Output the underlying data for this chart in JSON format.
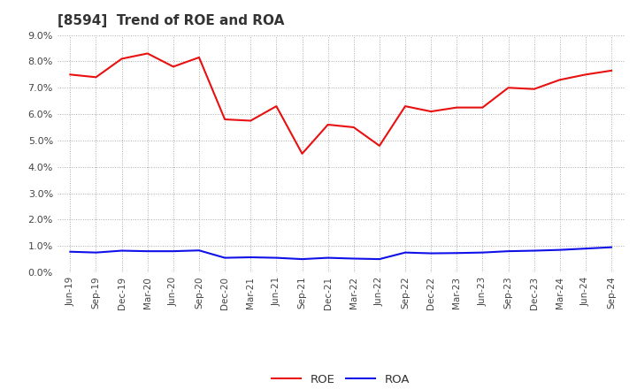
{
  "title": "[8594]  Trend of ROE and ROA",
  "x_labels": [
    "Jun-19",
    "Sep-19",
    "Dec-19",
    "Mar-20",
    "Jun-20",
    "Sep-20",
    "Dec-20",
    "Mar-21",
    "Jun-21",
    "Sep-21",
    "Dec-21",
    "Mar-22",
    "Jun-22",
    "Sep-22",
    "Dec-22",
    "Mar-23",
    "Jun-23",
    "Sep-23",
    "Dec-23",
    "Mar-24",
    "Jun-24",
    "Sep-24"
  ],
  "roe": [
    7.5,
    7.4,
    8.1,
    8.3,
    7.8,
    8.15,
    5.8,
    5.75,
    6.3,
    4.5,
    5.6,
    5.5,
    4.8,
    6.3,
    6.1,
    6.25,
    6.25,
    7.0,
    6.95,
    7.3,
    7.5,
    7.65
  ],
  "roa": [
    0.78,
    0.75,
    0.82,
    0.8,
    0.8,
    0.83,
    0.55,
    0.57,
    0.55,
    0.5,
    0.55,
    0.52,
    0.5,
    0.75,
    0.72,
    0.73,
    0.75,
    0.8,
    0.82,
    0.85,
    0.9,
    0.95
  ],
  "roe_color": "#e81010",
  "roa_color": "#1010e8",
  "ylim": [
    0.0,
    9.0
  ],
  "yticks": [
    0.0,
    1.0,
    2.0,
    3.0,
    4.0,
    5.0,
    6.0,
    7.0,
    8.0,
    9.0
  ],
  "background_color": "#ffffff",
  "grid_color": "#aaaaaa",
  "line_width": 1.5
}
